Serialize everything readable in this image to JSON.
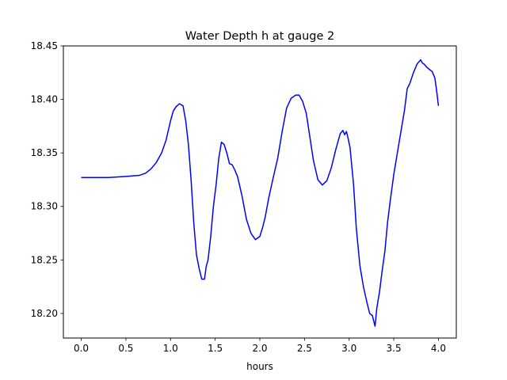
{
  "chart_data": {
    "type": "line",
    "title": "Water Depth h at gauge 2",
    "xlabel": "hours",
    "ylabel": "",
    "xlim": [
      -0.2,
      4.2
    ],
    "ylim": [
      18.177,
      18.45
    ],
    "xticks": [
      0.0,
      0.5,
      1.0,
      1.5,
      2.0,
      2.5,
      3.0,
      3.5,
      4.0
    ],
    "xtick_labels": [
      "0.0",
      "0.5",
      "1.0",
      "1.5",
      "2.0",
      "2.5",
      "3.0",
      "3.5",
      "4.0"
    ],
    "yticks": [
      18.2,
      18.25,
      18.3,
      18.35,
      18.4,
      18.45
    ],
    "ytick_labels": [
      "18.20",
      "18.25",
      "18.30",
      "18.35",
      "18.40",
      "18.45"
    ],
    "grid": false,
    "legend": "none",
    "series": [
      {
        "color": "#0000ff",
        "x": [
          0.0,
          0.3,
          0.5,
          0.65,
          0.72,
          0.78,
          0.84,
          0.9,
          0.95,
          1.0,
          1.03,
          1.06,
          1.1,
          1.14,
          1.17,
          1.2,
          1.23,
          1.26,
          1.29,
          1.32,
          1.35,
          1.38,
          1.4,
          1.42,
          1.45,
          1.48,
          1.51,
          1.54,
          1.57,
          1.6,
          1.63,
          1.66,
          1.69,
          1.72,
          1.75,
          1.8,
          1.85,
          1.9,
          1.95,
          2.0,
          2.03,
          2.06,
          2.1,
          2.15,
          2.2,
          2.25,
          2.3,
          2.35,
          2.4,
          2.44,
          2.48,
          2.52,
          2.56,
          2.6,
          2.65,
          2.7,
          2.75,
          2.8,
          2.85,
          2.9,
          2.93,
          2.95,
          2.97,
          2.99,
          3.01,
          3.05,
          3.08,
          3.12,
          3.16,
          3.2,
          3.23,
          3.26,
          3.29,
          3.31,
          3.34,
          3.37,
          3.4,
          3.43,
          3.46,
          3.5,
          3.54,
          3.58,
          3.62,
          3.65,
          3.68,
          3.72,
          3.76,
          3.8,
          3.82,
          3.84,
          3.87,
          3.9,
          3.93,
          3.96,
          3.98,
          4.0
        ],
        "y": [
          18.327,
          18.327,
          18.328,
          18.329,
          18.331,
          18.335,
          18.341,
          18.35,
          18.362,
          18.38,
          18.389,
          18.393,
          18.396,
          18.394,
          18.38,
          18.358,
          18.325,
          18.285,
          18.255,
          18.242,
          18.232,
          18.232,
          18.244,
          18.25,
          18.272,
          18.3,
          18.32,
          18.345,
          18.36,
          18.358,
          18.35,
          18.34,
          18.339,
          18.334,
          18.328,
          18.31,
          18.288,
          18.275,
          18.269,
          18.272,
          18.28,
          18.29,
          18.308,
          18.327,
          18.345,
          18.37,
          18.392,
          18.401,
          18.404,
          18.404,
          18.398,
          18.387,
          18.365,
          18.343,
          18.325,
          18.32,
          18.324,
          18.336,
          18.353,
          18.368,
          18.371,
          18.367,
          18.37,
          18.363,
          18.355,
          18.32,
          18.28,
          18.245,
          18.225,
          18.21,
          18.2,
          18.198,
          18.188,
          18.205,
          18.22,
          18.24,
          18.258,
          18.285,
          18.305,
          18.33,
          18.35,
          18.37,
          18.39,
          18.41,
          18.415,
          18.425,
          18.433,
          18.437,
          18.434,
          18.433,
          18.43,
          18.428,
          18.426,
          18.42,
          18.408,
          18.394
        ]
      }
    ]
  }
}
